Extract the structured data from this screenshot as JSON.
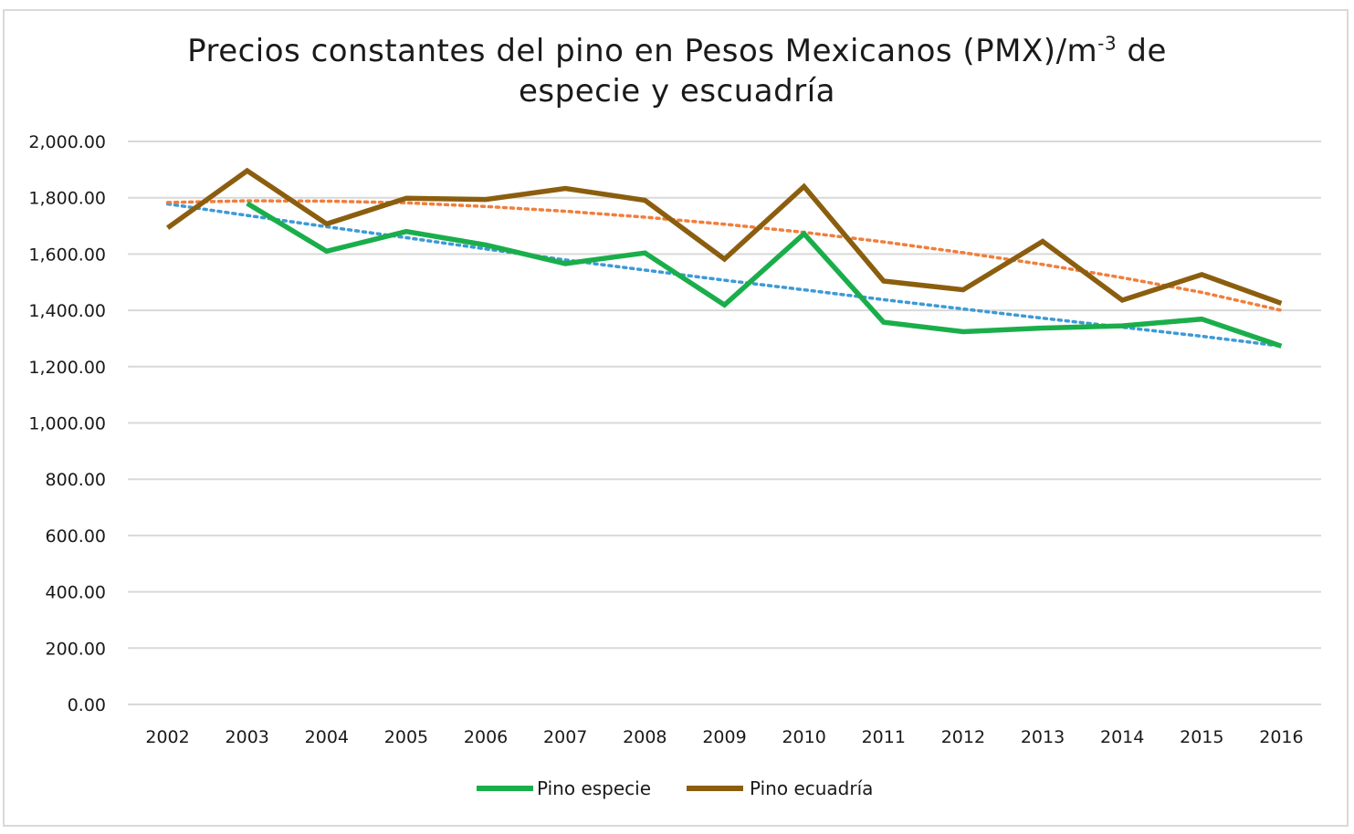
{
  "chart_data": {
    "type": "line",
    "title_line1": "Precios constantes del pino en Pesos Mexicanos (PMX)/m",
    "title_sup": "-3",
    "title_line1_end": " de",
    "title_line2": "especie y escuadría",
    "categories": [
      "2002",
      "2003",
      "2004",
      "2005",
      "2006",
      "2007",
      "2008",
      "2009",
      "2010",
      "2011",
      "2012",
      "2013",
      "2014",
      "2015",
      "2016"
    ],
    "ylim": [
      0,
      2000
    ],
    "yticks": [
      0,
      200,
      400,
      600,
      800,
      1000,
      1200,
      1400,
      1600,
      1800,
      2000
    ],
    "ytick_labels": [
      "0.00",
      "200.00",
      "400.00",
      "600.00",
      "800.00",
      "1,000.00",
      "1,200.00",
      "1,400.00",
      "1,600.00",
      "1,800.00",
      "2,000.00"
    ],
    "grid": true,
    "legend_position": "bottom",
    "series": [
      {
        "name": "Pino especie",
        "color": "#1aae4b",
        "values": [
          null,
          1780,
          1610,
          1680,
          1632,
          1566,
          1604,
          1419,
          1672,
          1358,
          1324,
          1337,
          1345,
          1369,
          1273
        ]
      },
      {
        "name": "Pino ecuadría",
        "color": "#8b5e0f",
        "values": [
          1693,
          1896,
          1707,
          1798,
          1794,
          1833,
          1791,
          1582,
          1840,
          1504,
          1473,
          1645,
          1436,
          1527,
          1425
        ]
      }
    ],
    "trendlines": [
      {
        "name": "trend-especie",
        "color": "#3d9ad6",
        "values": [
          1778,
          1737,
          1697,
          1658,
          1618,
          1579,
          1543,
          1507,
          1473,
          1438,
          1405,
          1372,
          1340,
          1308,
          1273
        ]
      },
      {
        "name": "trend-ecuadria",
        "color": "#f07f3c",
        "values": [
          1783,
          1789,
          1788,
          1782,
          1769,
          1752,
          1731,
          1706,
          1677,
          1643,
          1605,
          1563,
          1516,
          1464,
          1400
        ]
      }
    ]
  }
}
